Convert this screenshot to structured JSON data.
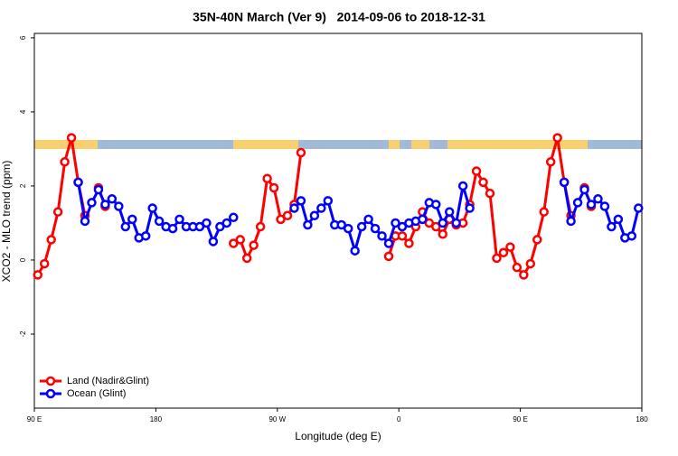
{
  "chart_data": {
    "type": "line",
    "title": "35N-40N March (Ver 9)   2014-09-06 to 2018-12-31",
    "x_label": "Longitude (deg E)",
    "y_label": "XCO2 - MLO trend (ppm)",
    "x": [
      92.5,
      97.5,
      102.5,
      107.5,
      112.5,
      117.5,
      122.5,
      127.5,
      132.5,
      137.5,
      142.5,
      147.5,
      152.5,
      157.5,
      162.5,
      167.5,
      172.5,
      177.5,
      182.5,
      187.5,
      192.5,
      197.5,
      202.5,
      207.5,
      212.5,
      217.5,
      222.5,
      227.5,
      232.5,
      237.5,
      242.5,
      247.5,
      252.5,
      257.5,
      262.5,
      267.5,
      272.5,
      277.5,
      282.5,
      287.5,
      292.5,
      297.5,
      302.5,
      307.5,
      312.5,
      317.5,
      322.5,
      327.5,
      332.5,
      337.5,
      342.5,
      347.5,
      352.5,
      357.5,
      362.5,
      367.5,
      372.5,
      377.5,
      382.5,
      387.5,
      392.5,
      397.5,
      402.5,
      407.5,
      412.5,
      417.5,
      422.5,
      427.5,
      432.5,
      437.5,
      442.5,
      447.5,
      452.5,
      457.5,
      462.5,
      467.5,
      472.5,
      477.5,
      482.5,
      487.5,
      492.5,
      497.5,
      502.5,
      507.5,
      512.5,
      517.5,
      522.5,
      527.5,
      532.5,
      537.5
    ],
    "series": [
      {
        "name": "Land (Nadir&Glint)",
        "color": "#ff0000",
        "values": [
          -0.4,
          -0.1,
          0.55,
          1.3,
          2.65,
          3.3,
          2.1,
          1.2,
          null,
          1.95,
          1.45,
          null,
          null,
          null,
          null,
          null,
          null,
          null,
          null,
          null,
          null,
          null,
          null,
          null,
          null,
          null,
          null,
          null,
          null,
          0.45,
          0.55,
          0.05,
          0.4,
          0.9,
          2.2,
          1.95,
          1.1,
          1.2,
          1.5,
          2.9,
          null,
          null,
          null,
          null,
          null,
          null,
          null,
          null,
          null,
          null,
          null,
          null,
          0.1,
          0.65,
          0.65,
          0.45,
          0.9,
          1.3,
          1.0,
          0.9,
          0.7,
          1.1,
          0.95,
          1.0,
          1.5,
          2.4,
          2.1,
          1.8,
          0.05,
          0.2,
          0.35,
          -0.2,
          -0.4,
          -0.1,
          0.55,
          1.3,
          2.65,
          3.3,
          2.1,
          1.2,
          null,
          1.95,
          1.45,
          null,
          null,
          null,
          null,
          null,
          null,
          null
        ]
      },
      {
        "name": "Ocean (Glint)",
        "color": "#0000ff",
        "values": [
          null,
          null,
          null,
          null,
          null,
          null,
          2.1,
          1.05,
          1.55,
          1.9,
          1.5,
          1.65,
          1.45,
          0.9,
          1.1,
          0.6,
          0.65,
          1.4,
          1.05,
          0.9,
          0.85,
          1.1,
          0.9,
          0.9,
          0.9,
          1.0,
          0.5,
          0.9,
          1.0,
          1.15,
          null,
          null,
          null,
          null,
          null,
          null,
          null,
          null,
          1.4,
          1.6,
          0.95,
          1.2,
          1.4,
          1.6,
          0.95,
          0.95,
          0.85,
          0.25,
          0.9,
          1.1,
          0.85,
          0.65,
          0.45,
          1.0,
          0.9,
          1.0,
          1.05,
          1.1,
          1.55,
          1.5,
          1.0,
          1.3,
          1.0,
          2.0,
          1.4,
          null,
          null,
          null,
          null,
          null,
          null,
          null,
          null,
          null,
          null,
          null,
          null,
          null,
          2.1,
          1.05,
          1.55,
          1.9,
          1.5,
          1.65,
          1.45,
          0.9,
          1.1,
          0.6,
          0.65,
          1.4
        ]
      }
    ],
    "xlim": [
      90,
      540
    ],
    "xticks": [
      {
        "value": 90,
        "label": "90 E"
      },
      180,
      {
        "value": 270,
        "label": "90 W"
      },
      {
        "value": 360,
        "label": "0"
      },
      {
        "value": 450,
        "label": "90 E"
      },
      {
        "value": 540,
        "label": "180"
      }
    ],
    "ylim": [
      -4,
      6.12
    ],
    "yticks": [
      -2,
      0,
      2,
      4,
      6
    ],
    "legend": "bottom-left",
    "grid": false
  }
}
